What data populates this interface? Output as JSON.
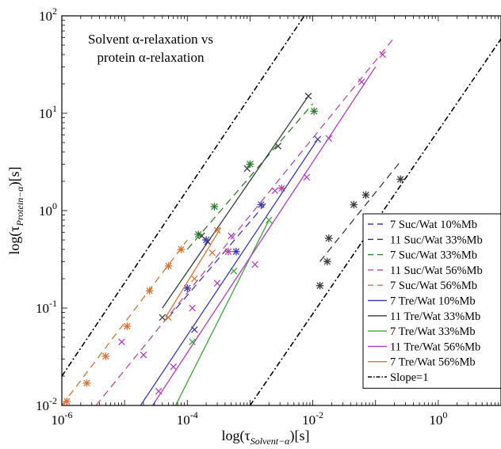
{
  "chart_data": {
    "type": "scatter",
    "title": "",
    "annotation_lines": [
      "Solvent α-relaxation vs",
      "protein α-relaxation"
    ],
    "xlabel": {
      "base": "log(τ",
      "sub": "Solvent−α",
      "tail": ")[s]"
    },
    "ylabel": {
      "base": "log(τ",
      "sub": "Protein−α",
      "tail": ")[s]"
    },
    "x_scale": "log",
    "y_scale": "log",
    "xlim": [
      1e-06,
      10
    ],
    "ylim": [
      0.01,
      100
    ],
    "x_ticks": [
      {
        "value": 1e-06,
        "base": "10",
        "exp": "-6"
      },
      {
        "value": 0.0001,
        "base": "10",
        "exp": "-4"
      },
      {
        "value": 0.01,
        "base": "10",
        "exp": "-2"
      },
      {
        "value": 1,
        "base": "10",
        "exp": "0"
      }
    ],
    "y_ticks": [
      {
        "value": 0.01,
        "base": "10",
        "exp": "-2"
      },
      {
        "value": 0.1,
        "base": "10",
        "exp": "-1"
      },
      {
        "value": 1,
        "base": "10",
        "exp": "0"
      },
      {
        "value": 10,
        "base": "10",
        "exp": "1"
      },
      {
        "value": 100,
        "base": "10",
        "exp": "2"
      }
    ],
    "grid": false,
    "legend_position": "right",
    "series": [
      {
        "name": "7 Suc/Wat 10%Mb",
        "color": "#3b3bb0",
        "marker": "*",
        "dash": true,
        "x": [
          0.0001,
          0.0002,
          0.0006,
          0.0015
        ],
        "y": [
          0.16,
          0.5,
          0.38,
          1.15
        ],
        "fit_x": [
          5e-05,
          0.002
        ],
        "fit_y": [
          0.08,
          1.3
        ]
      },
      {
        "name": "11 Suc/Wat 33%Mb",
        "color": "#3a3a3a",
        "marker": "*",
        "dash": true,
        "x": [
          0.013,
          0.017,
          0.018,
          0.045,
          0.07,
          0.25
        ],
        "y": [
          0.17,
          0.3,
          0.52,
          1.15,
          1.45,
          2.1
        ],
        "fit_x": [
          0.013,
          0.25
        ],
        "fit_y": [
          0.3,
          3.2
        ]
      },
      {
        "name": "7 Suc/Wat 33%Mb",
        "color": "#2f7f2f",
        "marker": "*",
        "dash": true,
        "x": [
          0.00015,
          0.00027,
          0.001,
          0.0105
        ],
        "y": [
          0.57,
          1.1,
          3.0,
          10.5
        ],
        "fit_x": [
          0.0001,
          0.01
        ],
        "fit_y": [
          0.4,
          12.5
        ]
      },
      {
        "name": "11 Suc/Wat 56%Mb",
        "color": "#c04a98",
        "marker": "*",
        "dash": true,
        "x": [
          0.00045,
          0.0032
        ],
        "y": [
          0.38,
          1.7
        ],
        "fit_x": [
          3.5e-06,
          0.2
        ],
        "fit_y": [
          0.01,
          60
        ]
      },
      {
        "name": "7 Suc/Wat 56%Mb",
        "color": "#d4743a",
        "marker": "*",
        "dash": true,
        "x": [
          1.2e-06,
          2.5e-06,
          5e-06,
          1.1e-05,
          2.5e-05,
          5e-05,
          8e-05
        ],
        "y": [
          0.011,
          0.017,
          0.032,
          0.065,
          0.15,
          0.27,
          0.4
        ],
        "fit_x": [
          1e-06,
          0.0001
        ],
        "fit_y": [
          0.01,
          0.5
        ]
      },
      {
        "name": "7 Tre/Wat 10%Mb",
        "color": "#3b3bb0",
        "marker": "x",
        "dash": false,
        "x": [
          0.00013,
          0.00021,
          0.012
        ],
        "y": [
          0.06,
          0.48,
          5.4
        ],
        "fit_x": [
          1.8e-05,
          0.012
        ],
        "fit_y": [
          0.01,
          5.4
        ]
      },
      {
        "name": "11 Tre/Wat 33%Mb",
        "color": "#3a3a3a",
        "marker": "x",
        "dash": false,
        "x": [
          4e-05,
          0.00017,
          0.0009,
          0.0028,
          0.0085
        ],
        "y": [
          0.08,
          0.55,
          2.7,
          4.6,
          15.0
        ],
        "fit_x": [
          4e-05,
          0.0085
        ],
        "fit_y": [
          0.1,
          15.0
        ]
      },
      {
        "name": "7 Tre/Wat 33%Mb",
        "color": "#3aa63a",
        "marker": "x",
        "dash": false,
        "x": [
          0.00012,
          0.00055,
          0.002
        ],
        "y": [
          0.045,
          0.24,
          0.8
        ],
        "fit_x": [
          6.5e-05,
          0.002
        ],
        "fit_y": [
          0.01,
          0.8
        ]
      },
      {
        "name": "11 Tre/Wat 56%Mb",
        "color": "#b23cc2",
        "marker": "x",
        "dash": false,
        "x": [
          9e-06,
          2e-05,
          3.5e-05,
          6e-05,
          0.00012,
          0.0003,
          0.0005,
          0.0012,
          0.0025,
          0.008,
          0.018,
          0.06,
          0.13
        ],
        "y": [
          0.045,
          0.033,
          0.014,
          0.025,
          0.1,
          0.18,
          0.55,
          0.28,
          1.6,
          2.2,
          5.5,
          21.0,
          40.0
        ],
        "fit_x": [
          2.8e-05,
          0.1
        ],
        "fit_y": [
          0.01,
          30.0
        ]
      },
      {
        "name": "7 Tre/Wat 56%Mb",
        "color": "#d4743a",
        "marker": "x",
        "dash": false,
        "x": [
          5e-05,
          0.00013,
          0.00025,
          0.0003
        ],
        "y": [
          0.08,
          0.2,
          0.37,
          0.63
        ],
        "fit_x": [
          4.5e-05,
          0.00034
        ],
        "fit_y": [
          0.08,
          0.66
        ]
      },
      {
        "name": "Slope=1",
        "color": "#000000",
        "marker": "none",
        "dash": "dashdot",
        "x": [],
        "y": [],
        "fit_x": [
          1e-06,
          0.012
        ],
        "fit_y": [
          0.02,
          160
        ]
      },
      {
        "name": "",
        "color": "#000000",
        "marker": "none",
        "dash": "dashdot",
        "legend": false,
        "x": [],
        "y": [],
        "fit_x": [
          0.001,
          10
        ],
        "fit_y": [
          0.01,
          58
        ]
      }
    ]
  }
}
